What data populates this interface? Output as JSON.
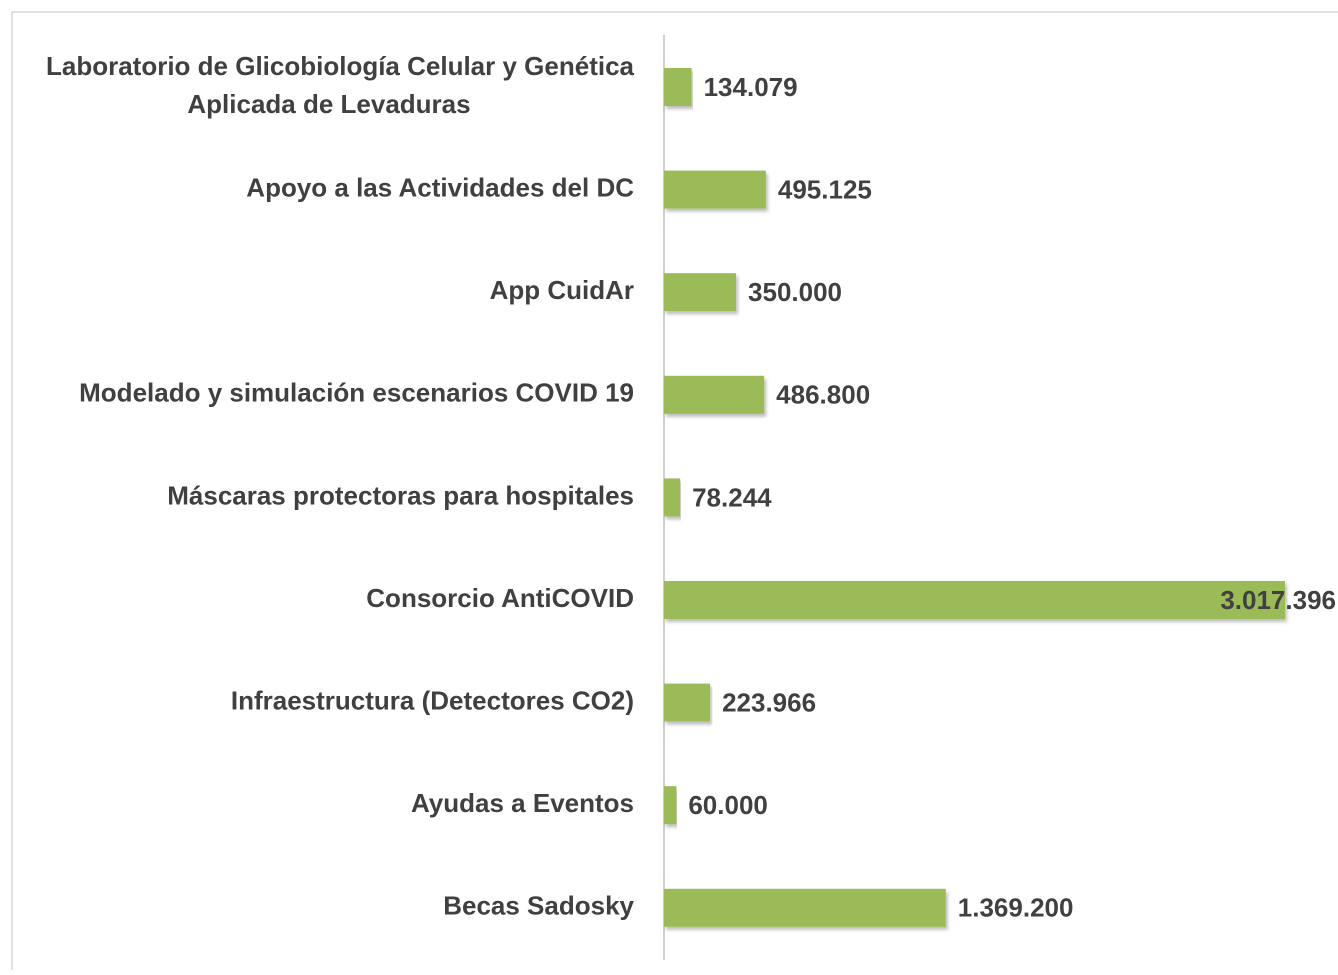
{
  "chart_data": {
    "type": "bar",
    "orientation": "horizontal",
    "categories": [
      "Laboratorio de Glicobiología Celular y Genética Aplicada de Levaduras",
      "Apoyo a las Actividades del DC",
      "App CuidAr",
      "Modelado y simulación escenarios COVID 19",
      "Máscaras protectoras para hospitales",
      "Consorcio AntiCOVID",
      "Infraestructura (Detectores CO2)",
      "Ayudas a Eventos",
      "Becas Sadosky"
    ],
    "values": [
      134079,
      495125,
      350000,
      486800,
      78244,
      3017396,
      223966,
      60000,
      1369200
    ],
    "value_labels": [
      "134.079",
      "495.125",
      "350.000",
      "486.800",
      "78.244",
      "3.017.396",
      "223.966",
      "60.000",
      "1.369.200"
    ],
    "color": "#9bbb59"
  }
}
